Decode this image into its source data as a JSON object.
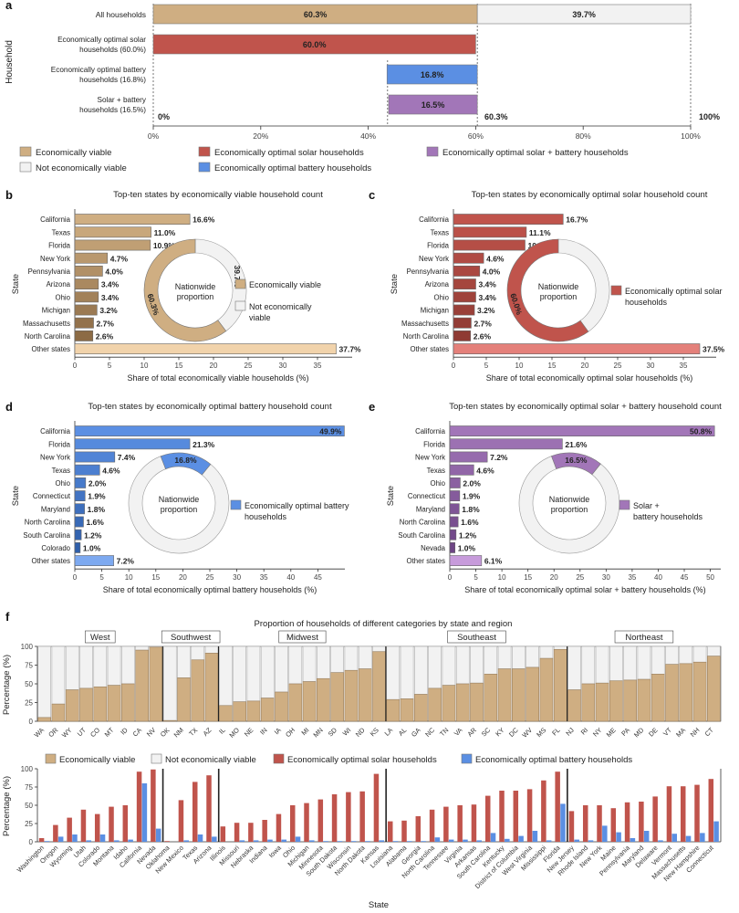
{
  "colors": {
    "viable": "#cfae82",
    "not_viable": "#f2f2f2",
    "solar": "#c0544c",
    "battery": "#5b8fe3",
    "solar_battery": "#a276b8",
    "solar_light": "#e4807a",
    "battery_light": "#7da9f0",
    "sb_light": "#c79bdb",
    "other_viable": "#f1d3ab",
    "divider": "#222222"
  },
  "chart_data": [
    {
      "panel": "a",
      "type": "bar",
      "orientation": "horizontal-stacked",
      "ylabel": "Household",
      "xlim": [
        0,
        100
      ],
      "x_ticks": [
        "0%",
        "20%",
        "40%",
        "60%",
        "80%",
        "100%"
      ],
      "rows": [
        {
          "label": "All households",
          "segments": [
            {
              "series": "Economically viable",
              "start": 0,
              "value": 60.3,
              "label": "60.3%"
            },
            {
              "series": "Not economically viable",
              "start": 60.3,
              "value": 39.7,
              "label": "39.7%"
            }
          ]
        },
        {
          "label": "Economically optimal solar households (60.0%)",
          "segments": [
            {
              "series": "Economically optimal solar households",
              "start": 0,
              "value": 60.0,
              "label": "60.0%"
            }
          ]
        },
        {
          "label": "Economically optimal battery households (16.8%)",
          "segments": [
            {
              "series": "Economically optimal battery households",
              "start": 43.5,
              "value": 16.8,
              "label": "16.8%"
            }
          ]
        },
        {
          "label": "Solar + battery households (16.5%)",
          "segments": [
            {
              "series": "Economically optimal solar + battery households",
              "start": 43.8,
              "value": 16.5,
              "label": "16.5%"
            }
          ]
        }
      ],
      "annotations": [
        "0%",
        "60.3%",
        "100%"
      ],
      "legend": [
        "Economically viable",
        "Economically optimal solar households",
        "Economically optimal solar + battery households",
        "Not economically viable",
        "Economically optimal battery households"
      ]
    },
    {
      "panel": "b",
      "type": "bar",
      "title": "Top-ten states by economically viable household count",
      "xlabel": "Share of total economically viable households (%)",
      "ylabel": "State",
      "xlim": [
        0,
        40
      ],
      "x_ticks": [
        0,
        5,
        10,
        15,
        20,
        25,
        30,
        35
      ],
      "categories": [
        "California",
        "Texas",
        "Florida",
        "New York",
        "Pennsylvania",
        "Arizona",
        "Ohio",
        "Michigan",
        "Massachusetts",
        "North Carolina",
        "Other states"
      ],
      "values": [
        16.6,
        11.0,
        10.9,
        4.7,
        4.0,
        3.4,
        3.4,
        3.2,
        2.7,
        2.6,
        37.7
      ],
      "value_labels": [
        "16.6%",
        "11.0%",
        "10.9%",
        "4.7%",
        "4.0%",
        "3.4%",
        "3.4%",
        "3.2%",
        "2.7%",
        "2.6%",
        "37.7%"
      ],
      "donut": {
        "center_label": "Nationwide proportion",
        "value": 60.3,
        "value_label": "60.3%",
        "rest_label": "39.7%"
      },
      "legend": [
        "Economically viable",
        "Not economically viable"
      ]
    },
    {
      "panel": "c",
      "type": "bar",
      "title": "Top-ten states by economically optimal solar household count",
      "xlabel": "Share of total economically optimal solar households (%)",
      "ylabel": "State",
      "xlim": [
        0,
        40
      ],
      "x_ticks": [
        0,
        5,
        10,
        15,
        20,
        25,
        30,
        35
      ],
      "categories": [
        "California",
        "Texas",
        "Florida",
        "New York",
        "Pennsylvania",
        "Arizona",
        "Ohio",
        "Michigan",
        "Massachusetts",
        "North Carolina",
        "Other states"
      ],
      "values": [
        16.7,
        11.1,
        10.9,
        4.6,
        4.0,
        3.4,
        3.4,
        3.2,
        2.7,
        2.6,
        37.5
      ],
      "value_labels": [
        "16.7%",
        "11.1%",
        "10.9%",
        "4.6%",
        "4.0%",
        "3.4%",
        "3.4%",
        "3.2%",
        "2.7%",
        "2.6%",
        "37.5%"
      ],
      "donut": {
        "center_label": "Nationwide proportion",
        "value": 60.0,
        "value_label": "60.0%"
      },
      "legend": [
        "Economically optimal solar households"
      ]
    },
    {
      "panel": "d",
      "type": "bar",
      "title": "Top-ten states by economically optimal battery household count",
      "xlabel": "Share of total economically optimal battery households (%)",
      "ylabel": "State",
      "xlim": [
        0,
        50
      ],
      "x_ticks": [
        0,
        5,
        10,
        15,
        20,
        25,
        30,
        35,
        40,
        45
      ],
      "categories": [
        "California",
        "Florida",
        "New York",
        "Texas",
        "Ohio",
        "Connecticut",
        "Maryland",
        "North Carolina",
        "South Carolina",
        "Colorado",
        "Other states"
      ],
      "values": [
        49.9,
        21.3,
        7.4,
        4.6,
        2.0,
        1.9,
        1.8,
        1.6,
        1.2,
        1.0,
        7.2
      ],
      "value_labels": [
        "49.9%",
        "21.3%",
        "7.4%",
        "4.6%",
        "2.0%",
        "1.9%",
        "1.8%",
        "1.6%",
        "1.2%",
        "1.0%",
        "7.2%"
      ],
      "donut": {
        "center_label": "Nationwide proportion",
        "value": 16.8,
        "value_label": "16.8%"
      },
      "legend": [
        "Economically optimal battery households"
      ]
    },
    {
      "panel": "e",
      "type": "bar",
      "title": "Top-ten states by economically optimal solar + battery household count",
      "xlabel": "Share of total economically optimal solar + battery households (%)",
      "ylabel": "State",
      "xlim": [
        0,
        52
      ],
      "x_ticks": [
        0,
        5,
        10,
        15,
        20,
        25,
        30,
        35,
        40,
        45,
        50
      ],
      "categories": [
        "California",
        "Florida",
        "New York",
        "Texas",
        "Ohio",
        "Connecticut",
        "Maryland",
        "North Carolina",
        "South Carolina",
        "Nevada",
        "Other states"
      ],
      "values": [
        50.8,
        21.6,
        7.2,
        4.6,
        2.0,
        1.9,
        1.8,
        1.6,
        1.2,
        1.0,
        6.1
      ],
      "value_labels": [
        "50.8%",
        "21.6%",
        "7.2%",
        "4.6%",
        "2.0%",
        "1.9%",
        "1.8%",
        "1.6%",
        "1.2%",
        "1.0%",
        "6.1%"
      ],
      "donut": {
        "center_label": "Nationwide proportion",
        "value": 16.5,
        "value_label": "16.5%"
      },
      "legend": [
        "Solar + battery households"
      ]
    },
    {
      "panel": "f-top",
      "type": "bar",
      "title": "Proportion of households of different categories by state and region",
      "ylabel": "Percentage (%)",
      "ylim": [
        0,
        100
      ],
      "y_ticks": [
        0,
        25,
        50,
        75,
        100
      ],
      "regions": [
        {
          "name": "West",
          "states": [
            "WA",
            "OR",
            "WY",
            "UT",
            "CO",
            "MT",
            "ID",
            "CA",
            "NV"
          ],
          "viable": [
            5,
            23,
            42,
            44,
            46,
            48,
            50,
            95,
            99
          ]
        },
        {
          "name": "Southwest",
          "states": [
            "OK",
            "NM",
            "TX",
            "AZ"
          ],
          "viable": [
            1,
            58,
            82,
            91
          ]
        },
        {
          "name": "Midwest",
          "states": [
            "IL",
            "MO",
            "NE",
            "IN",
            "IA",
            "OH",
            "MI",
            "MN",
            "SD",
            "WI",
            "ND",
            "KS"
          ],
          "viable": [
            21,
            26,
            27,
            31,
            39,
            50,
            53,
            57,
            65,
            68,
            70,
            93
          ]
        },
        {
          "name": "Southeast",
          "states": [
            "LA",
            "AL",
            "GA",
            "NC",
            "TN",
            "VA",
            "AR",
            "SC",
            "KY",
            "DC",
            "WV",
            "MS",
            "FL"
          ],
          "viable": [
            29,
            30,
            36,
            44,
            48,
            50,
            51,
            63,
            70,
            70,
            72,
            84,
            96
          ]
        },
        {
          "name": "Northeast",
          "states": [
            "NJ",
            "RI",
            "NY",
            "ME",
            "PA",
            "MD",
            "DE",
            "VT",
            "MA",
            "NH",
            "CT"
          ],
          "viable": [
            42,
            50,
            51,
            54,
            55,
            56,
            63,
            76,
            77,
            79,
            87
          ]
        }
      ],
      "legend": [
        "Economically viable",
        "Not economically viable",
        "Economically optimal solar households",
        "Economically optimal battery households"
      ]
    },
    {
      "panel": "f-bottom",
      "type": "bar",
      "ylabel": "Percentage (%)",
      "xlabel": "State",
      "ylim": [
        0,
        100
      ],
      "y_ticks": [
        0,
        25,
        50,
        75,
        100
      ],
      "regions": [
        {
          "states": [
            "Washington",
            "Oregon",
            "Wyoming",
            "Utah",
            "Colorado",
            "Montana",
            "Idaho",
            "California",
            "Nevada"
          ],
          "solar": [
            5,
            23,
            33,
            44,
            38,
            48,
            50,
            96,
            99
          ],
          "battery": [
            1,
            7,
            10,
            2,
            10,
            2,
            3,
            80,
            18
          ]
        },
        {
          "states": [
            "Oklahoma",
            "New Mexico",
            "Texas",
            "Arizona"
          ],
          "solar": [
            1,
            57,
            82,
            91
          ],
          "battery": [
            0,
            2,
            10,
            7
          ]
        },
        {
          "states": [
            "Illinois",
            "Missouri",
            "Nebraska",
            "Indiana",
            "Iowa",
            "Ohio",
            "Michigan",
            "Minnesota",
            "South Dakota",
            "Wisconsin",
            "North Dakota",
            "Kansas"
          ],
          "solar": [
            21,
            26,
            26,
            30,
            38,
            50,
            53,
            58,
            65,
            68,
            69,
            93
          ],
          "battery": [
            0,
            2,
            2,
            3,
            3,
            7,
            2,
            1,
            1,
            1,
            1,
            2
          ]
        },
        {
          "states": [
            "Louisiana",
            "Alabama",
            "Georgia",
            "North Carolina",
            "Tennessee",
            "Virginia",
            "Arkansas",
            "South Carolina",
            "Kentucky",
            "District of Columbia",
            "West Virginia",
            "Mississippi",
            "Florida"
          ],
          "solar": [
            28,
            29,
            35,
            44,
            48,
            50,
            51,
            63,
            70,
            70,
            72,
            84,
            96
          ],
          "battery": [
            1,
            1,
            1,
            6,
            3,
            3,
            2,
            12,
            4,
            8,
            15,
            2,
            52
          ]
        },
        {
          "states": [
            "New Jersey",
            "Rhode Island",
            "New York",
            "Maine",
            "Pennsylvania",
            "Maryland",
            "Delaware",
            "Vermont",
            "Massachusetts",
            "New Hampshire",
            "Connecticut"
          ],
          "solar": [
            42,
            50,
            50,
            46,
            54,
            55,
            62,
            76,
            76,
            78,
            86
          ],
          "battery": [
            3,
            2,
            22,
            13,
            5,
            15,
            2,
            11,
            8,
            12,
            28
          ]
        }
      ]
    }
  ],
  "panel_letters": [
    "a",
    "b",
    "c",
    "d",
    "e",
    "f"
  ]
}
